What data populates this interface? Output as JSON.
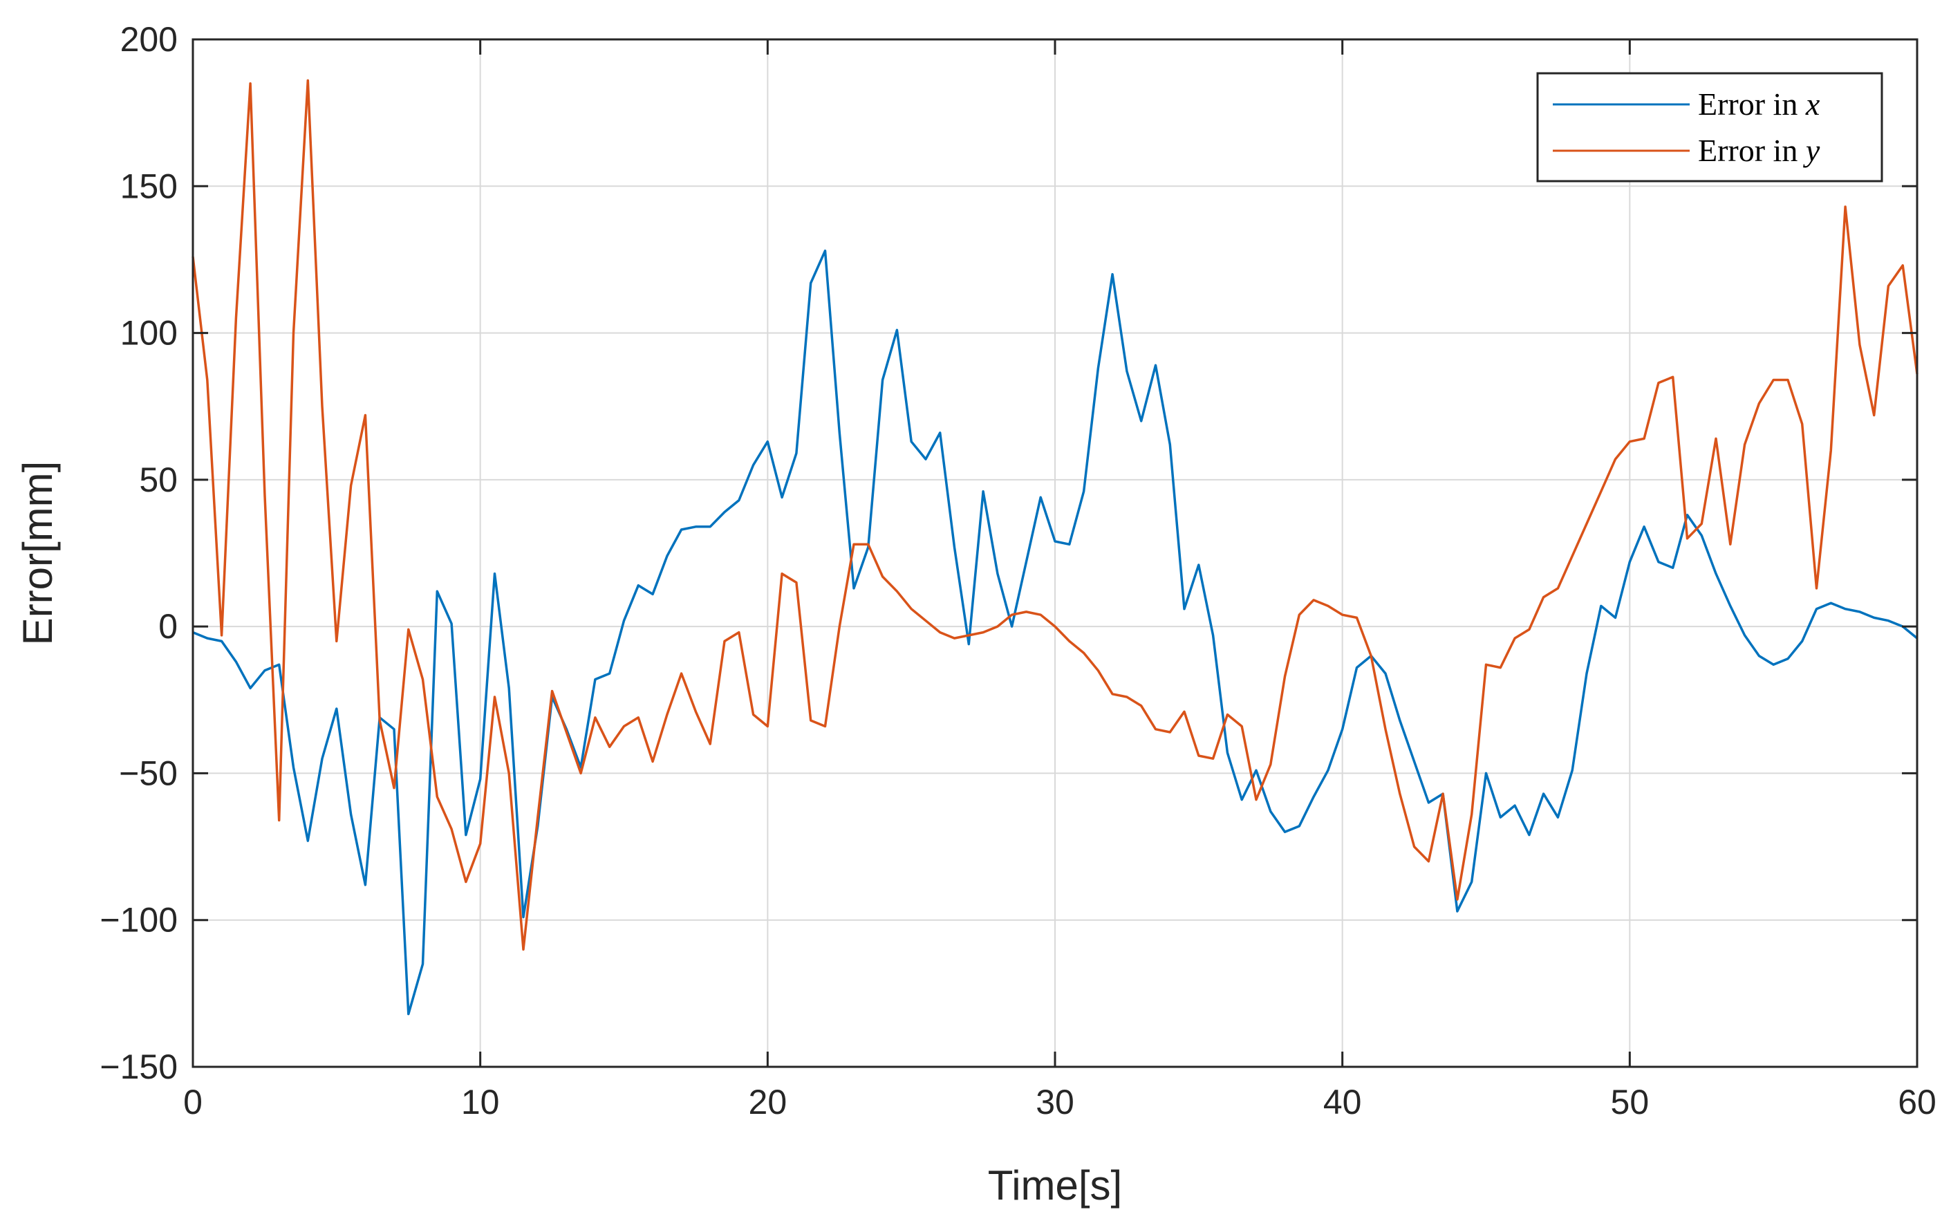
{
  "chart_data": {
    "type": "line",
    "xlabel": "Time[s]",
    "ylabel": "Error[mm]",
    "xlim": [
      0,
      60
    ],
    "ylim": [
      -150,
      200
    ],
    "xticks": [
      0,
      10,
      20,
      30,
      40,
      50,
      60
    ],
    "yticks": [
      -150,
      -100,
      -50,
      0,
      50,
      100,
      150,
      200
    ],
    "xtick_labels": [
      "0",
      "10",
      "20",
      "30",
      "40",
      "50",
      "60"
    ],
    "ytick_labels": [
      "−150",
      "−100",
      "−50",
      "0",
      "50",
      "100",
      "150",
      "200"
    ],
    "grid": true,
    "legend_position": "top-right",
    "series": [
      {
        "name": "Error in x",
        "name_parts": [
          "Error in ",
          "x"
        ],
        "color": "#0072BD",
        "x": [
          0,
          0.5,
          1,
          1.5,
          2,
          2.5,
          3,
          3.5,
          4,
          4.5,
          5,
          5.5,
          6,
          6.5,
          7,
          7.5,
          8,
          8.5,
          9,
          9.5,
          10,
          10.5,
          11,
          11.5,
          12,
          12.5,
          13,
          13.5,
          14,
          14.5,
          15,
          15.5,
          16,
          16.5,
          17,
          17.5,
          18,
          18.5,
          19,
          19.5,
          20,
          20.5,
          21,
          21.5,
          22,
          22.5,
          23,
          23.5,
          24,
          24.5,
          25,
          25.5,
          26,
          26.5,
          27,
          27.5,
          28,
          28.5,
          29,
          29.5,
          30,
          30.5,
          31,
          31.5,
          32,
          32.5,
          33,
          33.5,
          34,
          34.5,
          35,
          35.5,
          36,
          36.5,
          37,
          37.5,
          38,
          38.5,
          39,
          39.5,
          40,
          40.5,
          41,
          41.5,
          42,
          42.5,
          43,
          43.5,
          44,
          44.5,
          45,
          45.5,
          46,
          46.5,
          47,
          47.5,
          48,
          48.5,
          49,
          49.5,
          50,
          50.5,
          51,
          51.5,
          52,
          52.5,
          53,
          53.5,
          54,
          54.5,
          55,
          55.5,
          56,
          56.5,
          57,
          57.5,
          58,
          58.5,
          59,
          59.5,
          60
        ],
        "y": [
          -2,
          -4,
          -5,
          -12,
          -21,
          -15,
          -13,
          -48,
          -73,
          -45,
          -28,
          -64,
          -88,
          -31,
          -35,
          -132,
          -115,
          12,
          1,
          -71,
          -52,
          18,
          -21,
          -99,
          -68,
          -24,
          -35,
          -48,
          -18,
          -16,
          2,
          14,
          11,
          24,
          33,
          34,
          34,
          39,
          43,
          55,
          63,
          44,
          59,
          117,
          128,
          66,
          13,
          27,
          84,
          101,
          63,
          57,
          66,
          27,
          -6,
          46,
          18,
          0,
          22,
          44,
          29,
          28,
          46,
          88,
          120,
          87,
          70,
          89,
          62,
          6,
          21,
          -3,
          -43,
          -59,
          -49,
          -63,
          -70,
          -68,
          -58,
          -49,
          -35,
          -14,
          -10,
          -16,
          -32,
          -46,
          -60,
          -57,
          -97,
          -87,
          -50,
          -65,
          -61,
          -71,
          -57,
          -65,
          -49,
          -16,
          7,
          3,
          22,
          34,
          22,
          20,
          38,
          31,
          18,
          7,
          -3,
          -10,
          -13,
          -11,
          -5,
          6,
          8,
          6,
          5,
          3,
          2,
          0,
          -4
        ]
      },
      {
        "name": "Error in y",
        "name_parts": [
          "Error in ",
          "y"
        ],
        "color": "#D95319",
        "x": [
          0,
          0.5,
          1,
          1.5,
          2,
          2.5,
          3,
          3.5,
          4,
          4.5,
          5,
          5.5,
          6,
          6.5,
          7,
          7.5,
          8,
          8.5,
          9,
          9.5,
          10,
          10.5,
          11,
          11.5,
          12,
          12.5,
          13,
          13.5,
          14,
          14.5,
          15,
          15.5,
          16,
          16.5,
          17,
          17.5,
          18,
          18.5,
          19,
          19.5,
          20,
          20.5,
          21,
          21.5,
          22,
          22.5,
          23,
          23.5,
          24,
          24.5,
          25,
          25.5,
          26,
          26.5,
          27,
          27.5,
          28,
          28.5,
          29,
          29.5,
          30,
          30.5,
          31,
          31.5,
          32,
          32.5,
          33,
          33.5,
          34,
          34.5,
          35,
          35.5,
          36,
          36.5,
          37,
          37.5,
          38,
          38.5,
          39,
          39.5,
          40,
          40.5,
          41,
          41.5,
          42,
          42.5,
          43,
          43.5,
          44,
          44.5,
          45,
          45.5,
          46,
          46.5,
          47,
          47.5,
          48,
          48.5,
          49,
          49.5,
          50,
          50.5,
          51,
          51.5,
          52,
          52.5,
          53,
          53.5,
          54,
          54.5,
          55,
          55.5,
          56,
          56.5,
          57,
          57.5,
          58,
          58.5,
          59,
          59.5,
          60
        ],
        "y": [
          126,
          84,
          -3,
          105,
          185,
          45,
          -66,
          100,
          186,
          75,
          -5,
          48,
          72,
          -32,
          -55,
          -1,
          -18,
          -58,
          -69,
          -87,
          -74,
          -24,
          -50,
          -110,
          -65,
          -22,
          -36,
          -50,
          -31,
          -41,
          -34,
          -31,
          -46,
          -30,
          -16,
          -29,
          -40,
          -5,
          -2,
          -30,
          -34,
          18,
          15,
          -32,
          -34,
          0,
          28,
          28,
          17,
          12,
          6,
          2,
          -2,
          -4,
          -3,
          -2,
          0,
          4,
          5,
          4,
          0,
          -5,
          -9,
          -15,
          -23,
          -24,
          -27,
          -35,
          -36,
          -29,
          -44,
          -45,
          -30,
          -34,
          -59,
          -47,
          -17,
          4,
          9,
          7,
          4,
          3,
          -10,
          -35,
          -57,
          -75,
          -80,
          -57,
          -93,
          -64,
          -13,
          -14,
          -4,
          -1,
          10,
          13,
          24,
          35,
          46,
          57,
          63,
          64,
          83,
          85,
          30,
          35,
          64,
          28,
          62,
          76,
          84,
          84,
          69,
          13,
          60,
          143,
          96,
          72,
          116,
          123,
          86
        ]
      }
    ]
  }
}
